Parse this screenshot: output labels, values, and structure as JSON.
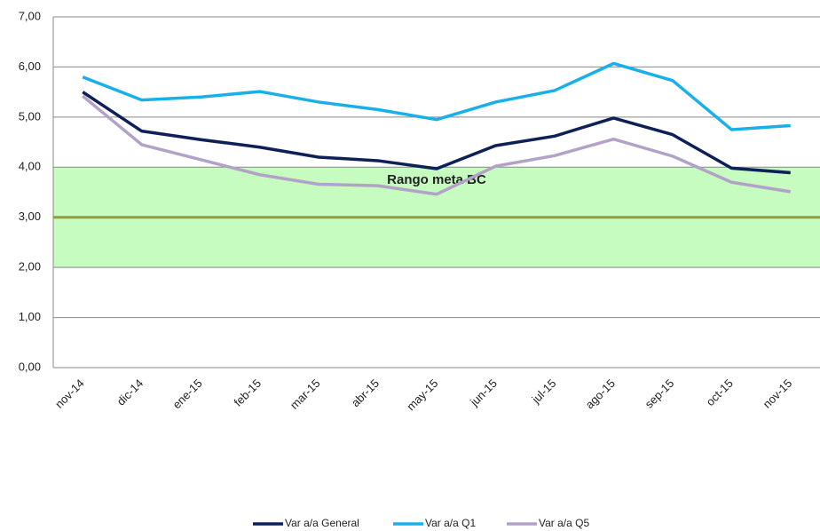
{
  "chart_data": {
    "type": "line",
    "categories": [
      "nov-14",
      "dic-14",
      "ene-15",
      "feb-15",
      "mar-15",
      "abr-15",
      "may-15",
      "jun-15",
      "jul-15",
      "ago-15",
      "sep-15",
      "oct-15",
      "nov-15"
    ],
    "series": [
      {
        "name": "Var a/a General",
        "color": "#0d2057",
        "values": [
          5.5,
          4.72,
          4.55,
          4.4,
          4.2,
          4.13,
          3.97,
          4.43,
          4.62,
          4.98,
          4.65,
          3.98,
          3.89
        ]
      },
      {
        "name": "Var a/a Q1",
        "color": "#19b0ea",
        "values": [
          5.8,
          5.34,
          5.4,
          5.51,
          5.3,
          5.15,
          4.95,
          5.3,
          5.53,
          6.07,
          5.73,
          4.75,
          4.83
        ]
      },
      {
        "name": "Var a/a Q5",
        "color": "#b3a2c8",
        "values": [
          5.42,
          4.45,
          4.15,
          3.85,
          3.66,
          3.63,
          3.46,
          4.02,
          4.23,
          4.56,
          4.22,
          3.7,
          3.51
        ]
      }
    ],
    "target_band": {
      "range": [
        2,
        4
      ],
      "label": "Rango meta BC",
      "color": "#c6fcc0",
      "label_color": "#2e8b8b"
    },
    "target_line": {
      "value": 3,
      "color": "#9a9a3c"
    },
    "ylim": [
      0,
      7
    ],
    "yticks": [
      {
        "value": 0,
        "label": "0,00"
      },
      {
        "value": 1,
        "label": "1,00"
      },
      {
        "value": 2,
        "label": "2,00"
      },
      {
        "value": 3,
        "label": "3,00"
      },
      {
        "value": 4,
        "label": "4,00"
      },
      {
        "value": 5,
        "label": "5,00"
      },
      {
        "value": 6,
        "label": "6,00"
      },
      {
        "value": 7,
        "label": "7,00"
      }
    ],
    "grid": true,
    "legend": "bottom"
  }
}
